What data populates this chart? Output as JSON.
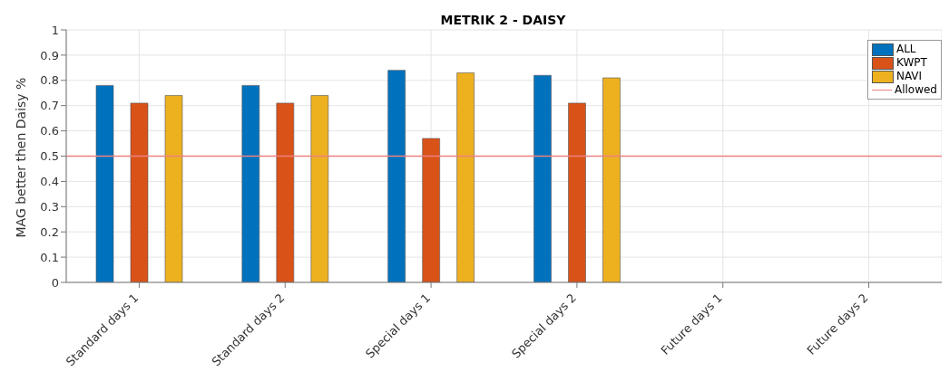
{
  "chart_data": {
    "type": "bar",
    "title": "METRIK 2 - DAISY",
    "ylabel": "MAG better then Daisy %",
    "categories": [
      "Standard days 1",
      "Standard days 2",
      "Special days 1",
      "Special days 2",
      "Future days 1",
      "Future days 2"
    ],
    "series": [
      {
        "name": "ALL",
        "color": "#0072bd",
        "values": [
          0.78,
          0.78,
          0.84,
          0.82,
          0,
          0
        ]
      },
      {
        "name": "KWPT",
        "color": "#d95319",
        "values": [
          0.71,
          0.71,
          0.57,
          0.71,
          0,
          0
        ]
      },
      {
        "name": "NAVI",
        "color": "#edb120",
        "values": [
          0.74,
          0.74,
          0.83,
          0.81,
          0,
          0
        ]
      }
    ],
    "ref_lines": [
      {
        "axis": "y",
        "value": 0.5,
        "label": "Allowed",
        "color": "#f08080"
      }
    ],
    "ylim": [
      0,
      1
    ],
    "yticks": [
      0,
      0.1,
      0.2,
      0.3,
      0.4,
      0.5,
      0.6,
      0.7,
      0.8,
      0.9,
      1
    ],
    "grid": true,
    "legend": "top right"
  }
}
